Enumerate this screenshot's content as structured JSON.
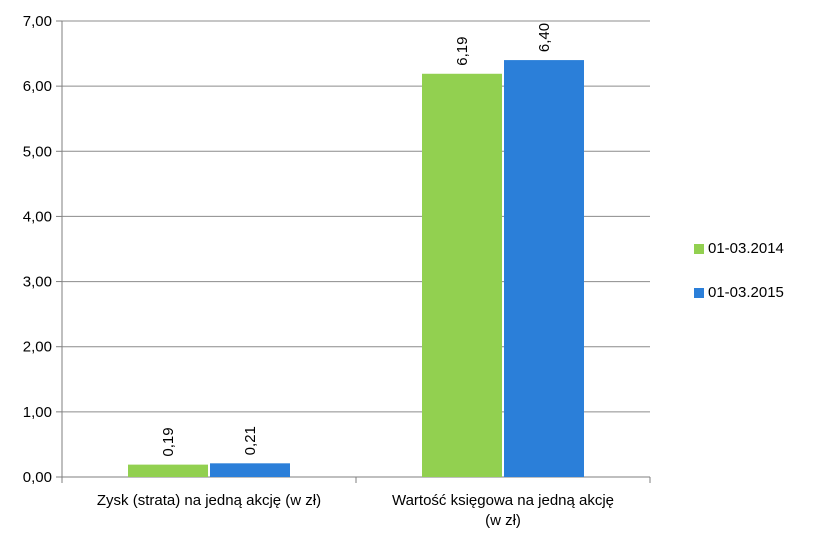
{
  "chart_data": {
    "type": "bar",
    "categories": [
      [
        "Zysk (strata) na jedną akcję (w zł)"
      ],
      [
        "Wartość księgowa na jedną akcję",
        "(w zł)"
      ]
    ],
    "series": [
      {
        "name": "01-03.2014",
        "color": "#92d050",
        "values": [
          0.19,
          6.19
        ],
        "labels": [
          "0,19",
          "6,19"
        ]
      },
      {
        "name": "01-03.2015",
        "color": "#2b7fd9",
        "values": [
          0.21,
          6.4
        ],
        "labels": [
          "0,21",
          "6,40"
        ]
      }
    ],
    "ylim": [
      0,
      7
    ],
    "ystep": 1,
    "ytick_labels": [
      "0,00",
      "1,00",
      "2,00",
      "3,00",
      "4,00",
      "5,00",
      "6,00",
      "7,00"
    ],
    "grid": true,
    "legend_position": "right",
    "title": "",
    "xlabel": "",
    "ylabel": ""
  }
}
